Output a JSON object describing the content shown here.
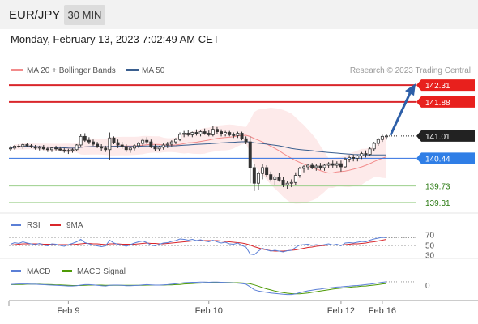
{
  "header": {
    "symbol": "EUR/JPY",
    "timeframe": "30 MIN",
    "datetime": "Monday, February 13, 2023 7:02:49 AM CET"
  },
  "chart_data": [
    {
      "type": "candlestick",
      "name": "price",
      "legend": [
        {
          "label": "MA 20 + Bollinger Bands",
          "color": "#f28b8b"
        },
        {
          "label": "MA 50",
          "color": "#3a5f8f"
        }
      ],
      "attribution": "Research © 2023 Trading Central",
      "ylim": [
        139.1,
        142.5
      ],
      "levels": [
        {
          "value": 142.31,
          "label": "142.31",
          "kind": "resistance"
        },
        {
          "value": 141.88,
          "label": "141.88",
          "kind": "resistance"
        },
        {
          "value": 141.01,
          "label": "141.01",
          "kind": "last"
        },
        {
          "value": 140.44,
          "label": "140.44",
          "kind": "pivot"
        },
        {
          "value": 139.73,
          "label": "139.73",
          "kind": "support"
        },
        {
          "value": 139.31,
          "label": "139.31",
          "kind": "support"
        }
      ],
      "candles": [
        [
          140.7,
          140.75,
          140.62,
          140.7
        ],
        [
          140.7,
          140.78,
          140.66,
          140.75
        ],
        [
          140.75,
          140.8,
          140.7,
          140.74
        ],
        [
          140.74,
          140.82,
          140.68,
          140.79
        ],
        [
          140.79,
          140.84,
          140.72,
          140.76
        ],
        [
          140.76,
          140.8,
          140.7,
          140.73
        ],
        [
          140.73,
          140.78,
          140.66,
          140.7
        ],
        [
          140.7,
          140.76,
          140.64,
          140.72
        ],
        [
          140.72,
          140.78,
          140.65,
          140.68
        ],
        [
          140.68,
          140.74,
          140.6,
          140.66
        ],
        [
          140.66,
          140.72,
          140.6,
          140.7
        ],
        [
          140.7,
          140.76,
          140.64,
          140.68
        ],
        [
          140.68,
          140.74,
          140.62,
          140.65
        ],
        [
          140.65,
          140.7,
          140.58,
          140.62
        ],
        [
          140.62,
          140.68,
          140.55,
          140.64
        ],
        [
          140.64,
          140.7,
          140.58,
          140.66
        ],
        [
          140.66,
          140.8,
          140.62,
          140.78
        ],
        [
          140.78,
          141.05,
          140.74,
          141.0
        ],
        [
          141.0,
          141.08,
          140.86,
          140.9
        ],
        [
          140.9,
          140.98,
          140.8,
          140.86
        ],
        [
          140.86,
          140.92,
          140.76,
          140.8
        ],
        [
          140.8,
          140.86,
          140.7,
          140.74
        ],
        [
          140.74,
          140.8,
          140.62,
          140.7
        ],
        [
          140.7,
          140.76,
          140.6,
          140.66
        ],
        [
          140.66,
          141.1,
          140.4,
          140.96
        ],
        [
          140.96,
          141.0,
          140.8,
          140.84
        ],
        [
          140.84,
          140.92,
          140.7,
          140.78
        ],
        [
          140.78,
          140.86,
          140.68,
          140.74
        ],
        [
          140.74,
          140.8,
          140.6,
          140.66
        ],
        [
          140.66,
          140.74,
          140.58,
          140.7
        ],
        [
          140.7,
          140.8,
          140.64,
          140.76
        ],
        [
          140.76,
          140.86,
          140.7,
          140.82
        ],
        [
          140.82,
          140.95,
          140.76,
          140.9
        ],
        [
          140.9,
          140.98,
          140.8,
          140.86
        ],
        [
          140.86,
          140.92,
          140.7,
          140.74
        ],
        [
          140.74,
          140.8,
          140.62,
          140.68
        ],
        [
          140.68,
          140.76,
          140.62,
          140.72
        ],
        [
          140.72,
          140.82,
          140.66,
          140.78
        ],
        [
          140.78,
          140.86,
          140.7,
          140.8
        ],
        [
          140.8,
          140.9,
          140.74,
          140.86
        ],
        [
          140.86,
          140.96,
          140.8,
          140.92
        ],
        [
          140.92,
          141.1,
          140.88,
          141.05
        ],
        [
          141.05,
          141.14,
          140.98,
          141.08
        ],
        [
          141.08,
          141.16,
          141.0,
          141.04
        ],
        [
          141.04,
          141.12,
          140.98,
          141.1
        ],
        [
          141.1,
          141.18,
          141.02,
          141.06
        ],
        [
          141.06,
          141.15,
          141.0,
          141.12
        ],
        [
          141.12,
          141.2,
          141.04,
          141.08
        ],
        [
          141.08,
          141.15,
          141.0,
          141.04
        ],
        [
          141.04,
          141.26,
          141.0,
          141.18
        ],
        [
          141.18,
          141.24,
          141.06,
          141.12
        ],
        [
          141.12,
          141.18,
          141.0,
          141.06
        ],
        [
          141.06,
          141.14,
          141.0,
          141.1
        ],
        [
          141.1,
          141.14,
          141.0,
          141.04
        ],
        [
          141.04,
          141.1,
          140.96,
          141.02
        ],
        [
          141.02,
          141.12,
          140.96,
          141.08
        ],
        [
          141.08,
          141.12,
          140.9,
          140.94
        ],
        [
          140.94,
          141.0,
          140.8,
          140.86
        ],
        [
          140.86,
          141.0,
          139.8,
          140.2
        ],
        [
          140.2,
          140.3,
          139.6,
          139.8
        ],
        [
          139.8,
          140.1,
          139.62,
          140.05
        ],
        [
          140.05,
          140.3,
          139.9,
          140.2
        ],
        [
          140.2,
          140.26,
          139.96,
          140.02
        ],
        [
          140.02,
          140.1,
          139.84,
          139.9
        ],
        [
          139.9,
          140.0,
          139.76,
          139.96
        ],
        [
          139.96,
          140.06,
          139.84,
          139.88
        ],
        [
          139.88,
          139.96,
          139.7,
          139.76
        ],
        [
          139.76,
          139.86,
          139.66,
          139.8
        ],
        [
          139.8,
          139.9,
          139.7,
          139.82
        ],
        [
          139.82,
          140.08,
          139.76,
          140.0
        ],
        [
          140.0,
          140.22,
          139.94,
          140.18
        ],
        [
          140.18,
          140.26,
          140.08,
          140.22
        ],
        [
          140.22,
          140.3,
          140.14,
          140.26
        ],
        [
          140.26,
          140.32,
          140.16,
          140.2
        ],
        [
          140.2,
          140.3,
          140.12,
          140.24
        ],
        [
          140.24,
          140.32,
          140.14,
          140.2
        ],
        [
          140.2,
          140.3,
          140.12,
          140.26
        ],
        [
          140.26,
          140.34,
          140.18,
          140.3
        ],
        [
          140.3,
          140.38,
          140.2,
          140.26
        ],
        [
          140.26,
          140.36,
          140.18,
          140.3
        ],
        [
          140.3,
          140.38,
          140.1,
          140.22
        ],
        [
          140.22,
          140.46,
          140.18,
          140.42
        ],
        [
          140.42,
          140.52,
          140.34,
          140.46
        ],
        [
          140.46,
          140.54,
          140.36,
          140.44
        ],
        [
          140.44,
          140.52,
          140.36,
          140.5
        ],
        [
          140.5,
          140.6,
          140.42,
          140.56
        ],
        [
          140.56,
          140.64,
          140.46,
          140.54
        ],
        [
          140.54,
          140.72,
          140.5,
          140.68
        ],
        [
          140.68,
          140.86,
          140.62,
          140.82
        ],
        [
          140.82,
          140.96,
          140.76,
          140.92
        ],
        [
          140.92,
          141.04,
          140.86,
          141.0
        ],
        [
          141.0,
          141.06,
          140.92,
          141.01
        ]
      ],
      "arrow": {
        "from": 141.01,
        "to": 142.31
      }
    },
    {
      "type": "line",
      "name": "RSI panel",
      "legend": [
        {
          "label": "RSI",
          "color": "#5b7fd6"
        },
        {
          "label": "9MA",
          "color": "#d9262b"
        }
      ],
      "ylim": [
        25,
        75
      ],
      "levels": [
        70,
        50,
        30
      ],
      "tick_labels": [
        "70",
        "50",
        "30"
      ],
      "series": [
        {
          "values": [
            54,
            58,
            56,
            60,
            57,
            55,
            53,
            56,
            52,
            50,
            55,
            54,
            51,
            49,
            53,
            56,
            60,
            66,
            58,
            55,
            52,
            50,
            48,
            50,
            64,
            57,
            54,
            52,
            49,
            53,
            57,
            60,
            62,
            58,
            52,
            50,
            54,
            57,
            58,
            61,
            63,
            67,
            66,
            64,
            66,
            63,
            65,
            62,
            60,
            64,
            60,
            57,
            59,
            55,
            54,
            57,
            51,
            47,
            30,
            28,
            37,
            44,
            40,
            37,
            39,
            37,
            35,
            38,
            39,
            46,
            52,
            53,
            54,
            51,
            53,
            51,
            53,
            55,
            52,
            54,
            50,
            57,
            58,
            57,
            59,
            61,
            60,
            64,
            67,
            69,
            71,
            70
          ]
        },
        {
          "values": [
            52,
            53,
            54,
            55,
            55,
            55,
            55,
            55,
            54,
            54,
            54,
            53,
            53,
            53,
            53,
            53,
            54,
            55,
            56,
            56,
            55,
            55,
            54,
            53,
            55,
            55,
            55,
            54,
            54,
            54,
            54,
            55,
            56,
            57,
            56,
            56,
            55,
            55,
            56,
            57,
            58,
            59,
            60,
            61,
            62,
            62,
            63,
            63,
            63,
            63,
            63,
            62,
            61,
            60,
            59,
            58,
            57,
            55,
            52,
            48,
            45,
            42,
            40,
            38,
            37,
            37,
            37,
            38,
            39,
            40,
            42,
            44,
            46,
            47,
            49,
            50,
            51,
            52,
            52,
            52,
            52,
            53,
            54,
            55,
            55,
            56,
            57,
            59,
            60,
            62,
            64,
            66
          ]
        }
      ]
    },
    {
      "type": "line",
      "name": "MACD panel",
      "legend": [
        {
          "label": "MACD",
          "color": "#5b7fd6"
        },
        {
          "label": "MACD Signal",
          "color": "#4e9a06"
        }
      ],
      "ylim": [
        -0.6,
        0.4
      ],
      "tick_labels": [
        "0"
      ],
      "series": [
        {
          "values": [
            0.06,
            0.07,
            0.08,
            0.08,
            0.08,
            0.07,
            0.07,
            0.06,
            0.05,
            0.04,
            0.03,
            0.02,
            0.01,
            0.0,
            -0.01,
            -0.01,
            0.0,
            0.03,
            0.05,
            0.05,
            0.04,
            0.02,
            0.0,
            -0.01,
            0.02,
            0.03,
            0.03,
            0.02,
            0.0,
            0.0,
            0.01,
            0.02,
            0.04,
            0.05,
            0.04,
            0.03,
            0.03,
            0.04,
            0.05,
            0.07,
            0.09,
            0.12,
            0.14,
            0.15,
            0.16,
            0.16,
            0.17,
            0.17,
            0.16,
            0.17,
            0.17,
            0.16,
            0.15,
            0.14,
            0.13,
            0.12,
            0.1,
            0.07,
            -0.05,
            -0.18,
            -0.24,
            -0.27,
            -0.3,
            -0.33,
            -0.35,
            -0.37,
            -0.39,
            -0.4,
            -0.4,
            -0.37,
            -0.32,
            -0.27,
            -0.23,
            -0.2,
            -0.17,
            -0.15,
            -0.12,
            -0.1,
            -0.08,
            -0.06,
            -0.05,
            -0.03,
            -0.02,
            0.0,
            0.01,
            0.03,
            0.05,
            0.07,
            0.1,
            0.13,
            0.16,
            0.18
          ]
        },
        {
          "values": [
            0.05,
            0.05,
            0.06,
            0.06,
            0.07,
            0.07,
            0.07,
            0.07,
            0.06,
            0.06,
            0.05,
            0.04,
            0.04,
            0.03,
            0.02,
            0.01,
            0.01,
            0.01,
            0.02,
            0.03,
            0.03,
            0.03,
            0.03,
            0.02,
            0.02,
            0.02,
            0.02,
            0.02,
            0.02,
            0.02,
            0.02,
            0.02,
            0.02,
            0.03,
            0.03,
            0.03,
            0.03,
            0.03,
            0.04,
            0.04,
            0.05,
            0.06,
            0.08,
            0.09,
            0.1,
            0.11,
            0.12,
            0.13,
            0.14,
            0.15,
            0.15,
            0.15,
            0.15,
            0.15,
            0.14,
            0.14,
            0.13,
            0.12,
            0.09,
            0.04,
            -0.02,
            -0.08,
            -0.14,
            -0.19,
            -0.24,
            -0.28,
            -0.31,
            -0.34,
            -0.36,
            -0.37,
            -0.37,
            -0.35,
            -0.33,
            -0.3,
            -0.27,
            -0.24,
            -0.21,
            -0.18,
            -0.15,
            -0.13,
            -0.11,
            -0.09,
            -0.07,
            -0.05,
            -0.04,
            -0.02,
            -0.01,
            0.01,
            0.03,
            0.05,
            0.08,
            0.1
          ]
        }
      ]
    }
  ],
  "x_axis": {
    "labels": [
      "Feb 9",
      "Feb 10",
      "Feb 12",
      "Feb 16"
    ]
  }
}
